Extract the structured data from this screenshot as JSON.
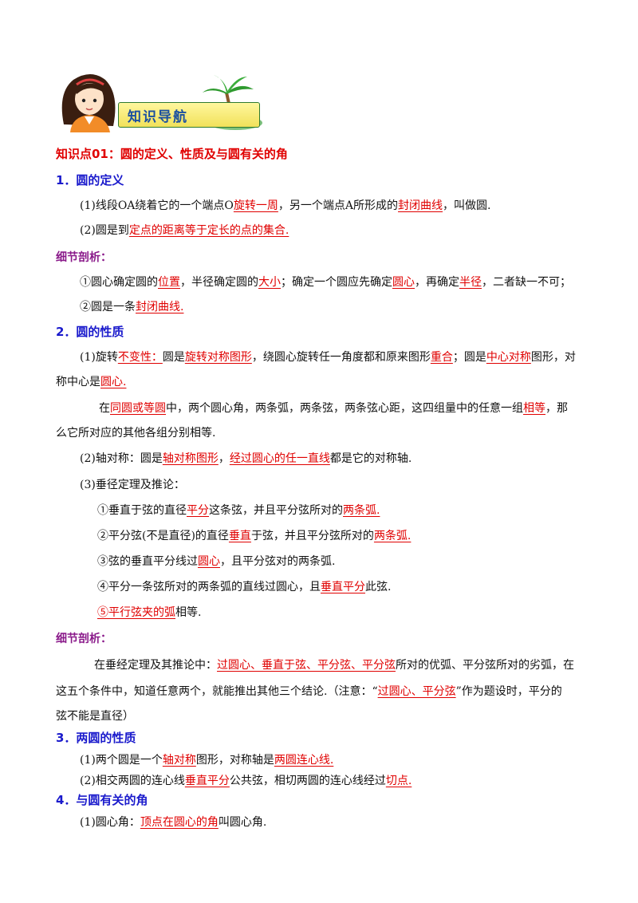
{
  "banner": {
    "title": "知识导航"
  },
  "section": {
    "title": "知识点01：圆的定义、性质及与圆有关的角"
  },
  "s1": {
    "heading": "1．圆的定义",
    "p1": {
      "t1": "(1)线段OA绕着它的一个端点O",
      "b1": "旋转一周",
      "t2": "，另一个端点A所形成的",
      "b2": "封闭曲线",
      "t3": "，叫做圆."
    },
    "p2": {
      "t1": "(2)圆是到",
      "b1": "定点的距离等于定长的点的集合."
    }
  },
  "note1": {
    "heading": "细节剖析：",
    "p1": {
      "t1": "①圆心确定圆的",
      "b1": "位置",
      "t2": "，半径确定圆的",
      "b2": "大小",
      "t3": "；确定一个圆应先确定",
      "b3": "圆心",
      "t4": "，再确定",
      "b4": "半径",
      "t5": "，二者缺一不可；"
    },
    "p2": {
      "t1": "②圆是一条",
      "b1": "封闭曲线."
    }
  },
  "s2": {
    "heading": "2．圆的性质",
    "p1": {
      "t1": "(1)旋转",
      "b1": "不变性：",
      "t2": "圆是",
      "b2": "旋转对称图形",
      "t3": "，绕圆心旋转任一角度都和原来图形",
      "b3": "重合",
      "t4": "；圆是",
      "b4": "中心对称",
      "t5": "图形，对"
    },
    "p1b": {
      "t1": "称中心是",
      "b1": "圆心."
    },
    "p2": {
      "t1": "在",
      "b1": "同圆或等圆",
      "t2": "中，两个圆心角，两条弧，两条弦，两条弦心距，这四组量中的任意一组",
      "b2": "相等",
      "t3": "，那"
    },
    "p2b": {
      "t1": "么它所对应的其他各组分别相等."
    },
    "p3": {
      "t1": "(2)轴对称：圆是",
      "b1": "轴对称图形",
      "t2": "，",
      "b2": "经过圆心的任一直线",
      "t3": "都是它的对称轴."
    },
    "p4": {
      "t1": "(3)垂径定理及推论："
    },
    "i1": {
      "t1": "①垂直于弦的直径",
      "b1": "平分",
      "t2": "这条弦，并且平分弦所对的",
      "b2": "两条弧."
    },
    "i2": {
      "t1": "②平分弦(不是直径)的直径",
      "b1": "垂直",
      "t2": "于弦，并且平分弦所对的",
      "b2": "两条弧."
    },
    "i3": {
      "t1": "③弦的垂直平分线过",
      "b1": "圆心",
      "t2": "，且平分弦对的两条弧."
    },
    "i4": {
      "t1": "④平分一条弦所对的两条弧的直线过圆心，且",
      "b1": "垂直平分",
      "t2": "此弦."
    },
    "i5": {
      "b1": "⑤平行弦夹的弧",
      "t1": "相等."
    }
  },
  "note2": {
    "heading": "细节剖析：",
    "p1": {
      "t1": "在垂经定理及其推论中：",
      "b1": "过圆心、垂直于弦、平分弦、平分弦",
      "t2": "所对的优弧、平分弦所对的劣弧，在"
    },
    "p2": {
      "t1": "这五个条件中，知道任意两个，就能推出其他三个结论.（注意：“",
      "b1": "过圆心、平分弦",
      "t2": "”作为题设时，平分的"
    },
    "p3": {
      "t1": "弦不能是直径）"
    }
  },
  "s3": {
    "heading": "3．两圆的性质",
    "p1": {
      "t1": "(1)两个圆是一个",
      "b1": "轴对称",
      "t2": "图形，对称轴是",
      "b2": "两圆连心线."
    },
    "p2": {
      "t1": "(2)相交两圆的连心线",
      "b1": "垂直平分",
      "t2": "公共弦，相切两圆的连心线经过",
      "b2": "切点."
    }
  },
  "s4": {
    "heading": "4．与圆有关的角",
    "p1": {
      "t1": "(1)圆心角：",
      "b1": "顶点在圆心的角",
      "t2": "叫圆心角."
    }
  }
}
